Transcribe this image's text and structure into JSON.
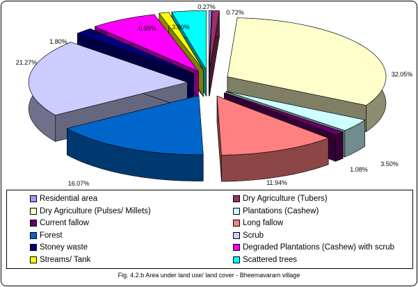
{
  "chart_data": {
    "type": "pie",
    "style": "3d-exploded",
    "title": "Fig. 4.2.b Area under land use/ land cover - Bheemavaram village",
    "categories": [
      "Residential area",
      "Dry Agriculture (Tubers)",
      "Dry Agriculture (Pulses/ Millets)",
      "Plantations (Cashew)",
      "Current fallow",
      "Long fallow",
      "Forest",
      "Scrub",
      "Stoney waste",
      "Degraded Plantations (Cashew) with scrub",
      "Streams/ Tank",
      "Scattered trees"
    ],
    "values": [
      0.27,
      0.72,
      32.05,
      3.5,
      1.08,
      11.94,
      16.07,
      21.27,
      1.8,
      6.82,
      0.99,
      3.5
    ],
    "labels": [
      "0.27%",
      "0.72%",
      "32.05%",
      "3.50%",
      "1.08%",
      "11.94%",
      "16.07%",
      "21.27%",
      "1.80%",
      "6.82%",
      "0.99%",
      "3.50%"
    ],
    "colors": [
      "#9999FF",
      "#993366",
      "#FFFFCC",
      "#CCFFFF",
      "#660066",
      "#FF8080",
      "#0066CC",
      "#CCCCFF",
      "#000080",
      "#FF00FF",
      "#FFFF00",
      "#00FFFF"
    ],
    "legend_placement": "bottom"
  }
}
